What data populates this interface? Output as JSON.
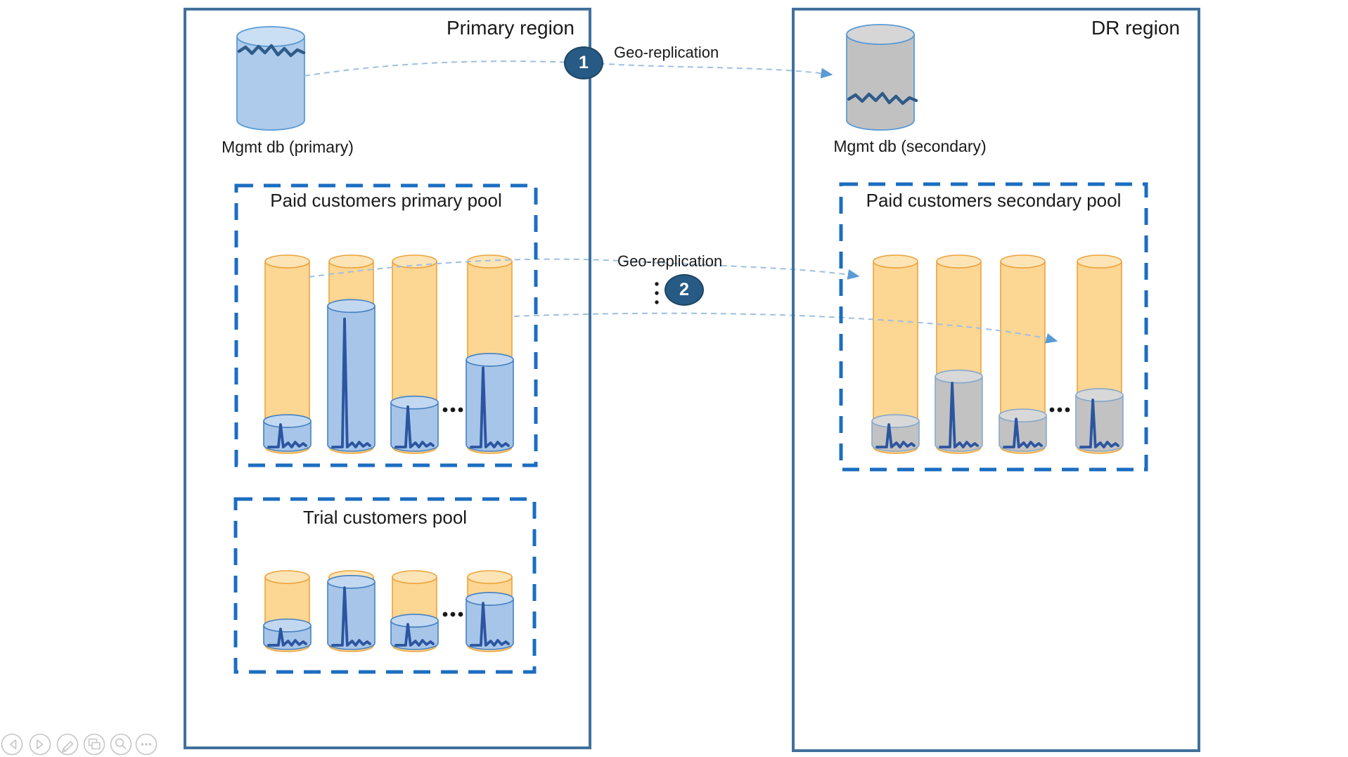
{
  "slide": {
    "regions": [
      {
        "id": "primary",
        "title": "Primary region",
        "mgmt_db": {
          "label": "Mgmt db (primary)",
          "style": "blue"
        },
        "pools": [
          {
            "title": "Paid customers primary pool",
            "fill_style": "blue",
            "databases_fill_percent": [
              14,
              76,
              24,
              47
            ],
            "more": "..."
          },
          {
            "title": "Trial customers pool",
            "fill_style": "blue",
            "databases_fill_percent": [
              29,
              93,
              36,
              68
            ],
            "more": "..."
          }
        ]
      },
      {
        "id": "dr",
        "title": "DR region",
        "mgmt_db": {
          "label": "Mgmt db (secondary)",
          "style": "gray"
        },
        "pools": [
          {
            "title": "Paid customers secondary pool",
            "fill_style": "gray",
            "databases_fill_percent": [
              14,
              38,
              17,
              28
            ],
            "more": "..."
          }
        ]
      }
    ],
    "connections": [
      {
        "badge": "1",
        "label": "Geo-replication"
      },
      {
        "badge": "2",
        "label": "Geo-replication",
        "ellipsis": "⋮"
      }
    ]
  },
  "toolbar": {
    "icons": [
      "previous-slide",
      "next-slide",
      "pen",
      "slide-navigator",
      "zoom",
      "more-options"
    ]
  },
  "colors": {
    "region_border": "#41719C",
    "pool_border": "#1B6DC1",
    "capacity_body": "#FCD693",
    "capacity_top": "#FCE4B6",
    "capacity_stroke": "#ECA33C",
    "fill_blue": "#A6C5E8",
    "fill_blue_top": "#C2D8F0",
    "fill_blue_stroke": "#4580C2",
    "fill_gray": "#C2C2C2",
    "fill_gray_top": "#D8D8D8",
    "fill_gray_stroke": "#85A8CB",
    "mgmt_blue_body": "#AECBEB",
    "mgmt_blue_top": "#CADEF4",
    "mgmt_gray_body": "#C1C1C1",
    "mgmt_gray_top": "#D6D6D6",
    "mgmt_stroke": "#5B9BD5",
    "waveform": "#2B55A0",
    "squiggle": "#2E5B88",
    "badge_bg": "#275A85",
    "badge_border": "#1D4663",
    "badge_text": "#FFFFFF",
    "connector": "#9FBFDF",
    "arrowhead": "#5B9BD5",
    "dots": "#1A1A1A",
    "text": "#1A1A1A",
    "toolbar_icon": "#C6C6C6"
  }
}
